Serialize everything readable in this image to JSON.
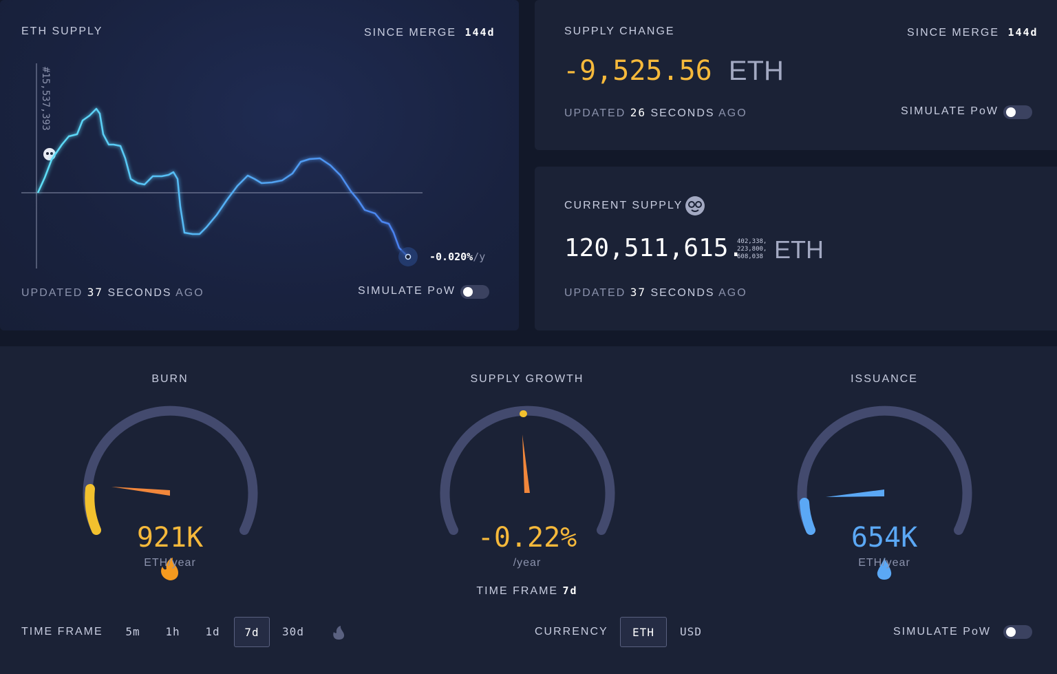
{
  "chart_data": {
    "type": "line",
    "title": "ETH SUPPLY",
    "since_label": "SINCE MERGE",
    "since_value": "144d",
    "block_label": "#15,537,393",
    "rate": "-0.020%",
    "rate_unit": "/y",
    "x": [
      0,
      10,
      20,
      35,
      45,
      57,
      65,
      75,
      85,
      90,
      95,
      103,
      110,
      120,
      127,
      135,
      145,
      155,
      167,
      180,
      190,
      197,
      203,
      207,
      213,
      225,
      235,
      245,
      260,
      275,
      290,
      305,
      315,
      325,
      340,
      355,
      370,
      382,
      395,
      410,
      425,
      440,
      455,
      465,
      475,
      490,
      500,
      510,
      517,
      525,
      538
    ],
    "values": [
      0,
      22,
      48,
      70,
      82,
      85,
      105,
      112,
      122,
      115,
      85,
      70,
      70,
      68,
      50,
      20,
      14,
      12,
      24,
      24,
      26,
      30,
      20,
      -20,
      -58,
      -60,
      -60,
      -50,
      -32,
      -10,
      10,
      25,
      20,
      14,
      15,
      18,
      28,
      45,
      49,
      50,
      40,
      25,
      2,
      -10,
      -25,
      -30,
      -42,
      -45,
      -58,
      -80,
      -93
    ],
    "xlim": [
      0,
      538
    ],
    "ylim": [
      -110,
      190
    ],
    "color": "#4fc3f7",
    "updated": {
      "prefix": "UPDATED",
      "value": "37",
      "unit": "SECONDS",
      "suffix": "AGO"
    },
    "simulate": "SIMULATE PoW"
  },
  "supply_change": {
    "title": "SUPPLY CHANGE",
    "since_label": "SINCE MERGE",
    "since_value": "144d",
    "value": "-9,525.56",
    "unit": "ETH",
    "updated": {
      "prefix": "UPDATED",
      "value": "26",
      "unit": "SECONDS",
      "suffix": "AGO"
    },
    "simulate": "SIMULATE PoW"
  },
  "current_supply": {
    "title": "CURRENT SUPPLY",
    "value": "120,511,615.",
    "decimals": [
      "402,338,",
      "223,800,",
      "608,038"
    ],
    "unit": "ETH",
    "updated": {
      "prefix": "UPDATED",
      "value": "37",
      "unit": "SECONDS",
      "suffix": "AGO"
    }
  },
  "gauges": [
    {
      "title": "BURN",
      "value": "921K",
      "unit": "ETH/year"
    },
    {
      "title": "SUPPLY GROWTH",
      "value": "-0.22%",
      "unit": "/year",
      "time_frame_label": "TIME FRAME",
      "time_frame_value": "7d"
    },
    {
      "title": "ISSUANCE",
      "value": "654K",
      "unit": "ETH/year"
    }
  ],
  "controls": {
    "time_frame_label": "TIME FRAME",
    "time_frames": [
      "5m",
      "1h",
      "1d",
      "7d",
      "30d"
    ],
    "selected_time_frame": "7d",
    "currency_label": "CURRENCY",
    "currencies": [
      "ETH",
      "USD"
    ],
    "selected_currency": "ETH",
    "simulate": "SIMULATE PoW"
  }
}
